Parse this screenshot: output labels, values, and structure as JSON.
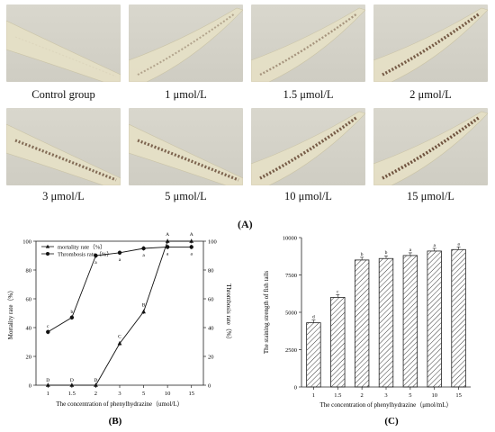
{
  "panel_a": {
    "label": "(A)",
    "photos": [
      {
        "caption": "Control group",
        "staining": 0.05
      },
      {
        "caption": "1 μmol/L",
        "staining": 0.35
      },
      {
        "caption": "1.5 μmol/L",
        "staining": 0.45
      },
      {
        "caption": "2 μmol/L",
        "staining": 0.8
      },
      {
        "caption": "3 μmol/L",
        "staining": 0.7
      },
      {
        "caption": "5 μmol/L",
        "staining": 0.75
      },
      {
        "caption": "10 μmol/L",
        "staining": 0.8
      },
      {
        "caption": "15 μmol/L",
        "staining": 0.85
      }
    ]
  },
  "chart_data": [
    {
      "panel_label": "(B)",
      "type": "line",
      "categories": [
        "1",
        "1.5",
        "2",
        "3",
        "5",
        "10",
        "15"
      ],
      "xlabel": "The concentration of phenylhydrazine（umol/L）",
      "ylabel": "Mortality rate（%）",
      "ylabel_right": "Thrombosis rate（%）",
      "ylim": [
        0,
        100
      ],
      "yticks": [
        0,
        20,
        40,
        60,
        80,
        100
      ],
      "series": [
        {
          "name": "mortality rate（%）",
          "marker": "triangle",
          "axis": "left",
          "values": [
            0,
            0,
            0,
            29,
            51,
            100,
            100
          ],
          "letters": [
            "D",
            "D",
            "D",
            "C",
            "B",
            "A",
            "A"
          ]
        },
        {
          "name": "Thrombosis rate（%）",
          "marker": "circle",
          "axis": "right",
          "values": [
            37,
            47,
            90,
            92,
            95,
            96,
            96
          ],
          "letters": [
            "c",
            "b",
            "a",
            "a",
            "a",
            "a",
            "a"
          ]
        }
      ],
      "legend": "top-left"
    },
    {
      "panel_label": "(C)",
      "type": "bar",
      "categories": [
        "1",
        "1.5",
        "2",
        "3",
        "5",
        "10",
        "15"
      ],
      "values": [
        4300,
        6000,
        8500,
        8600,
        8800,
        9100,
        9200
      ],
      "letters": [
        "d",
        "c",
        "b",
        "b",
        "a",
        "a",
        "a"
      ],
      "xlabel": "The concentration of phenylhydrazine（μmol/mL）",
      "ylabel": "The staining strength of fish tails",
      "ylim": [
        0,
        10000
      ],
      "yticks": [
        0,
        2500,
        5000,
        7500,
        10000
      ]
    }
  ]
}
